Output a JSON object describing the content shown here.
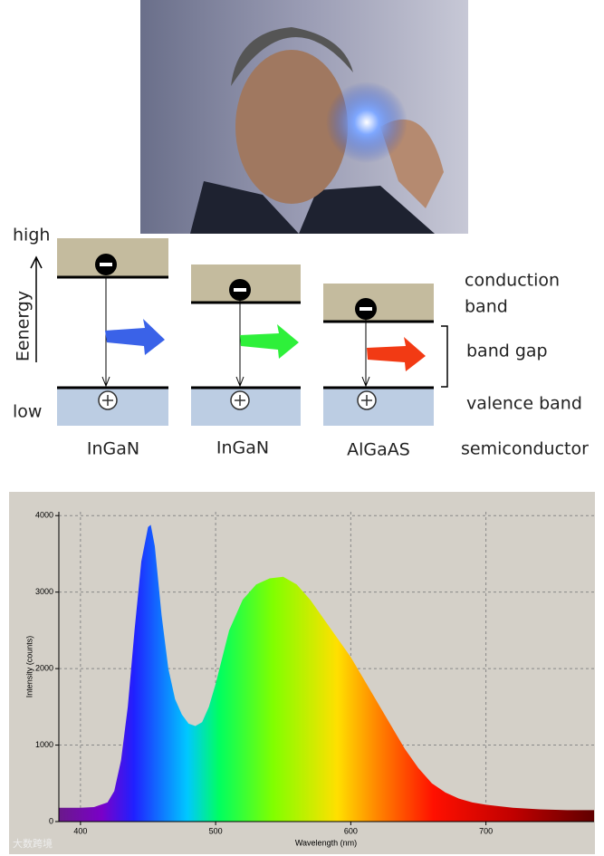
{
  "diagram": {
    "energy_high": "high",
    "energy_low": "low",
    "energy_label": "Eenergy",
    "columns": [
      "InGaN",
      "InGaN",
      "AlGaAS"
    ],
    "conduction_line1": "conduction",
    "conduction_line2": "band",
    "band_gap": "band gap",
    "valence_band": "valence band",
    "semiconductor": "semiconductor"
  },
  "watermark": "大数跨境",
  "chart_data": {
    "type": "area",
    "x_label": "Wavelength (nm)",
    "y_label": "Intensity (counts)",
    "x": [
      384,
      390,
      400,
      410,
      420,
      425,
      430,
      435,
      440,
      445,
      450,
      452,
      455,
      460,
      465,
      470,
      475,
      480,
      485,
      490,
      495,
      500,
      510,
      520,
      530,
      540,
      550,
      560,
      570,
      580,
      590,
      600,
      610,
      620,
      630,
      640,
      650,
      660,
      670,
      680,
      690,
      700,
      720,
      740,
      760,
      780
    ],
    "values": [
      180,
      180,
      180,
      190,
      250,
      400,
      800,
      1500,
      2500,
      3400,
      3850,
      3880,
      3600,
      2700,
      2000,
      1600,
      1400,
      1280,
      1250,
      1300,
      1500,
      1800,
      2500,
      2900,
      3100,
      3180,
      3200,
      3100,
      2900,
      2650,
      2400,
      2150,
      1850,
      1550,
      1250,
      950,
      700,
      500,
      380,
      300,
      250,
      220,
      180,
      160,
      150,
      150
    ],
    "xlim": [
      384,
      780
    ],
    "ylim": [
      0,
      4050
    ],
    "xticks": [
      400,
      500,
      600,
      700
    ],
    "yticks": [
      0,
      1000,
      2000,
      3000,
      4000
    ],
    "grid": true
  }
}
